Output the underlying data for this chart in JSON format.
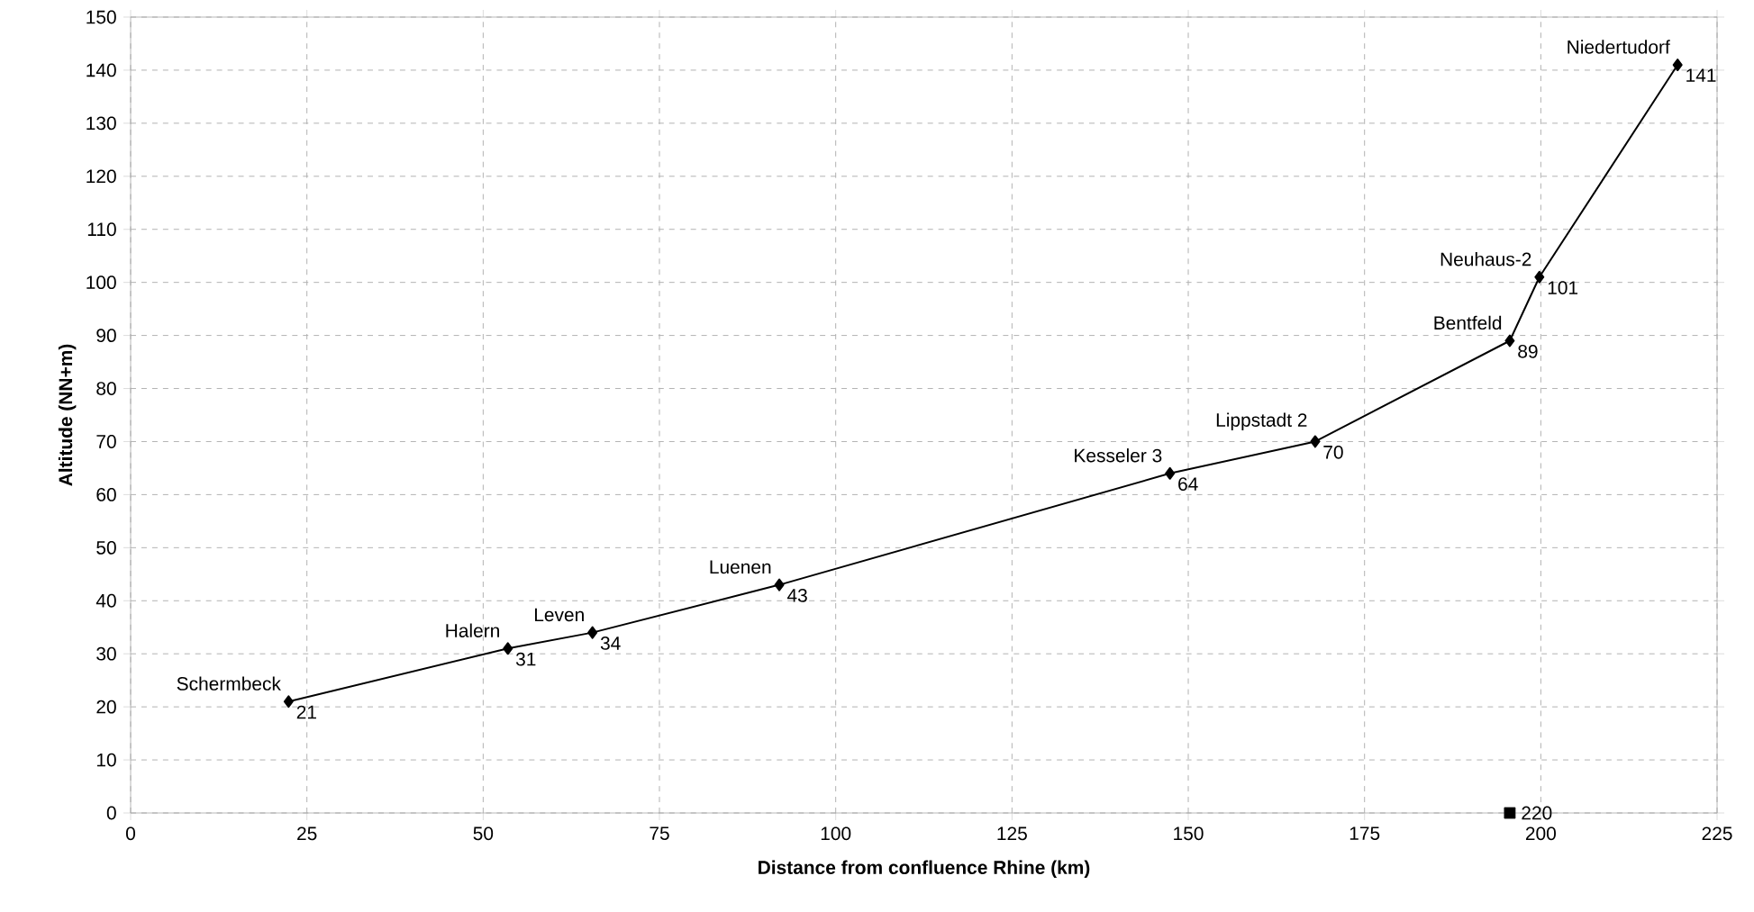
{
  "chart_data": {
    "type": "line",
    "xlabel": "Distance from confluence Rhine (km)",
    "ylabel": "Altitude (NN+m)",
    "xlim": [
      0,
      225
    ],
    "xticks": [
      0,
      25,
      50,
      75,
      100,
      125,
      150,
      175,
      200,
      225
    ],
    "ylim": [
      0,
      150
    ],
    "yticks": [
      0,
      10,
      20,
      30,
      40,
      50,
      60,
      70,
      80,
      90,
      100,
      110,
      120,
      130,
      140,
      150
    ],
    "grid": true,
    "line_style": "solid",
    "series": [
      {
        "type": "line",
        "marker": "diamond",
        "color": "#000000",
        "x": [
          22.4,
          53.5,
          65.5,
          92.0,
          147.4,
          168.0,
          195.6,
          199.8,
          219.4
        ],
        "values": [
          21,
          31,
          34,
          43,
          64,
          70,
          89,
          101,
          141
        ],
        "value_labels": [
          "21",
          "31",
          "34",
          "43",
          "64",
          "70",
          "89",
          "101",
          "141"
        ]
      },
      {
        "type": "scatter",
        "marker": "square",
        "color": "#000000",
        "x": [
          195.6
        ],
        "values": [
          0
        ]
      }
    ],
    "annotations": [
      {
        "text": "220",
        "x": 195.6,
        "y": 0
      },
      {
        "text": "Schermbeck",
        "x": 22.4,
        "y": 21
      },
      {
        "text": "Halern",
        "x": 53.5,
        "y": 31
      },
      {
        "text": "Leven",
        "x": 65.5,
        "y": 34
      },
      {
        "text": "Luenen",
        "x": 92.0,
        "y": 43
      },
      {
        "text": "Kesseler 3",
        "x": 147.4,
        "y": 64
      },
      {
        "text": "Lippstadt 2",
        "x": 168.0,
        "y": 70
      },
      {
        "text": "Bentfeld",
        "x": 195.6,
        "y": 89
      },
      {
        "text": "Neuhaus-2",
        "x": 199.8,
        "y": 101
      },
      {
        "text": "Niedertudorf",
        "x": 219.4,
        "y": 141
      }
    ]
  }
}
